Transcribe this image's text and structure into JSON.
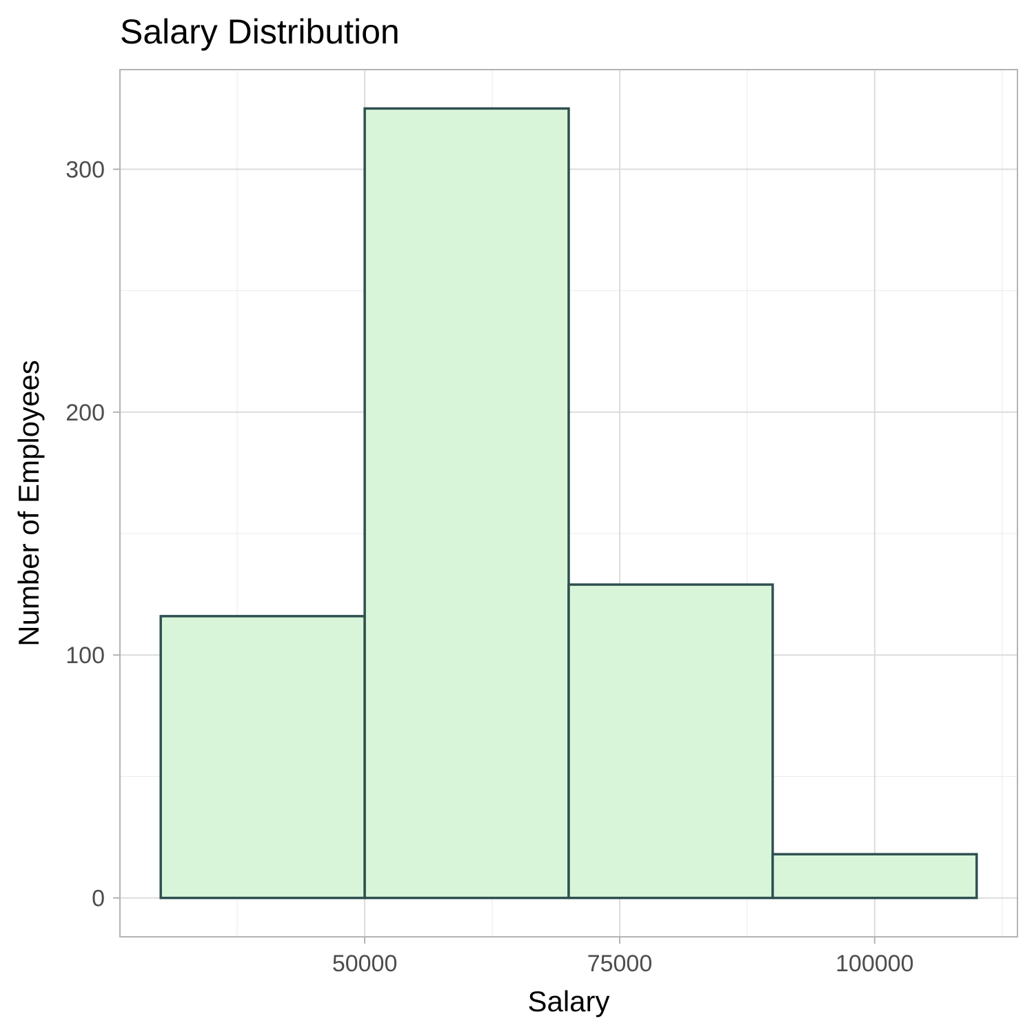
{
  "chart_data": {
    "type": "bar",
    "subtype": "histogram",
    "title": "Salary Distribution",
    "xlabel": "Salary",
    "ylabel": "Number of Employees",
    "bins": [
      {
        "x_start": 30000,
        "x_end": 50000,
        "count": 116
      },
      {
        "x_start": 50000,
        "x_end": 70000,
        "count": 325
      },
      {
        "x_start": 70000,
        "x_end": 90000,
        "count": 129
      },
      {
        "x_start": 90000,
        "x_end": 110000,
        "count": 18
      }
    ],
    "xlim": [
      26000,
      114000
    ],
    "ylim": [
      -16,
      341
    ],
    "x_ticks": [
      50000,
      75000,
      100000
    ],
    "x_tick_labels": [
      "50000",
      "75000",
      "100000"
    ],
    "y_ticks": [
      0,
      100,
      200,
      300
    ],
    "y_tick_labels": [
      "0",
      "100",
      "200",
      "300"
    ],
    "grid": true,
    "bar_fill": "#d9f5d9",
    "bar_stroke": "#2f4f4f"
  }
}
